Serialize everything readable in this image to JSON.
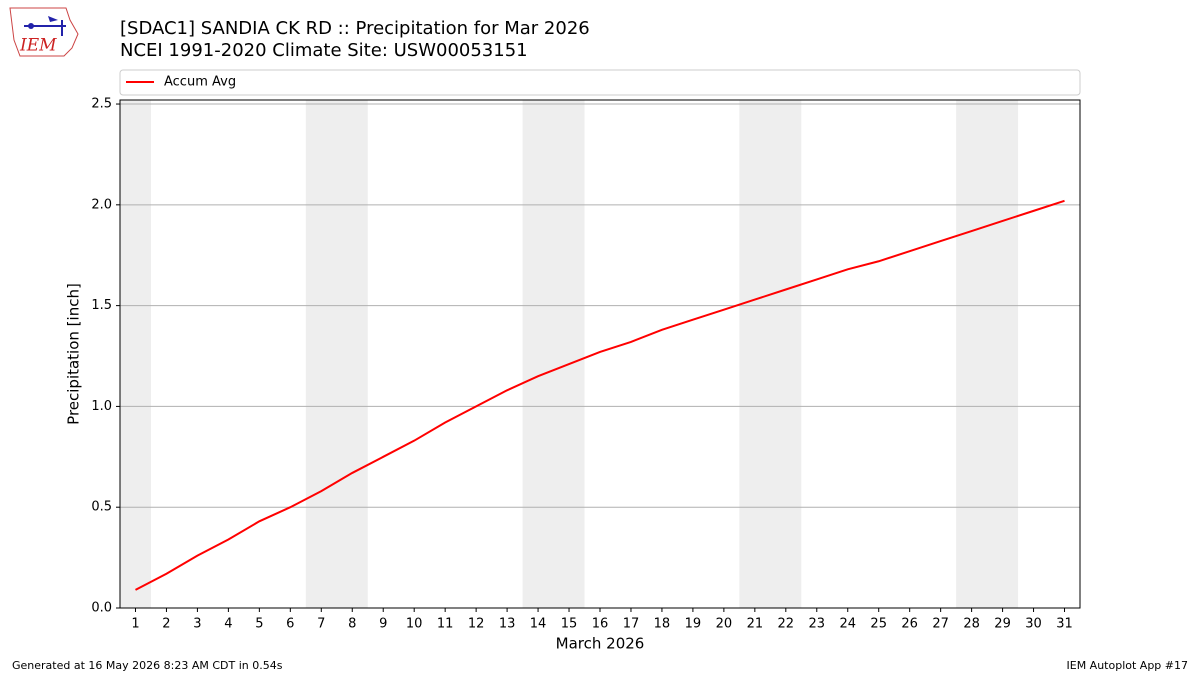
{
  "logo_text": "IEM",
  "chart_data": {
    "type": "line",
    "title": "[SDAC1] SANDIA CK RD :: Precipitation for Mar 2026",
    "subtitle": "NCEI 1991-2020 Climate Site: USW00053151",
    "x_label": "March 2026",
    "y_label": "Precipitation [inch]",
    "x": [
      1,
      2,
      3,
      4,
      5,
      6,
      7,
      8,
      9,
      10,
      11,
      12,
      13,
      14,
      15,
      16,
      17,
      18,
      19,
      20,
      21,
      22,
      23,
      24,
      25,
      26,
      27,
      28,
      29,
      30,
      31
    ],
    "series": [
      {
        "name": "Accum Avg",
        "color": "#ff0000",
        "values": [
          0.09,
          0.17,
          0.26,
          0.34,
          0.43,
          0.5,
          0.58,
          0.67,
          0.75,
          0.83,
          0.92,
          1.0,
          1.08,
          1.15,
          1.21,
          1.27,
          1.32,
          1.38,
          1.43,
          1.48,
          1.53,
          1.58,
          1.63,
          1.68,
          1.72,
          1.77,
          1.82,
          1.87,
          1.92,
          1.97,
          2.02
        ]
      }
    ],
    "xlim": [
      0.5,
      31.5
    ],
    "xticks": [
      1,
      2,
      3,
      4,
      5,
      6,
      7,
      8,
      9,
      10,
      11,
      12,
      13,
      14,
      15,
      16,
      17,
      18,
      19,
      20,
      21,
      22,
      23,
      24,
      25,
      26,
      27,
      28,
      29,
      30,
      31
    ],
    "ylim": [
      0,
      2.52
    ],
    "yticks": [
      {
        "value": 0,
        "label": "0.0"
      },
      0.5,
      {
        "value": 1,
        "label": "1.0"
      },
      1.5,
      {
        "value": 2,
        "label": "2.0"
      },
      2.5
    ],
    "weekend_spans": [
      [
        0.5,
        1.5
      ],
      [
        6.5,
        8.5
      ],
      [
        13.5,
        15.5
      ],
      [
        20.5,
        22.5
      ],
      [
        27.5,
        29.5
      ]
    ],
    "weekend_color": "#eeeeee",
    "grid": true,
    "legend": "top"
  },
  "footer": {
    "left": "Generated at 16 May 2026 8:23 AM CDT in 0.54s",
    "right": "IEM Autoplot App #17"
  }
}
